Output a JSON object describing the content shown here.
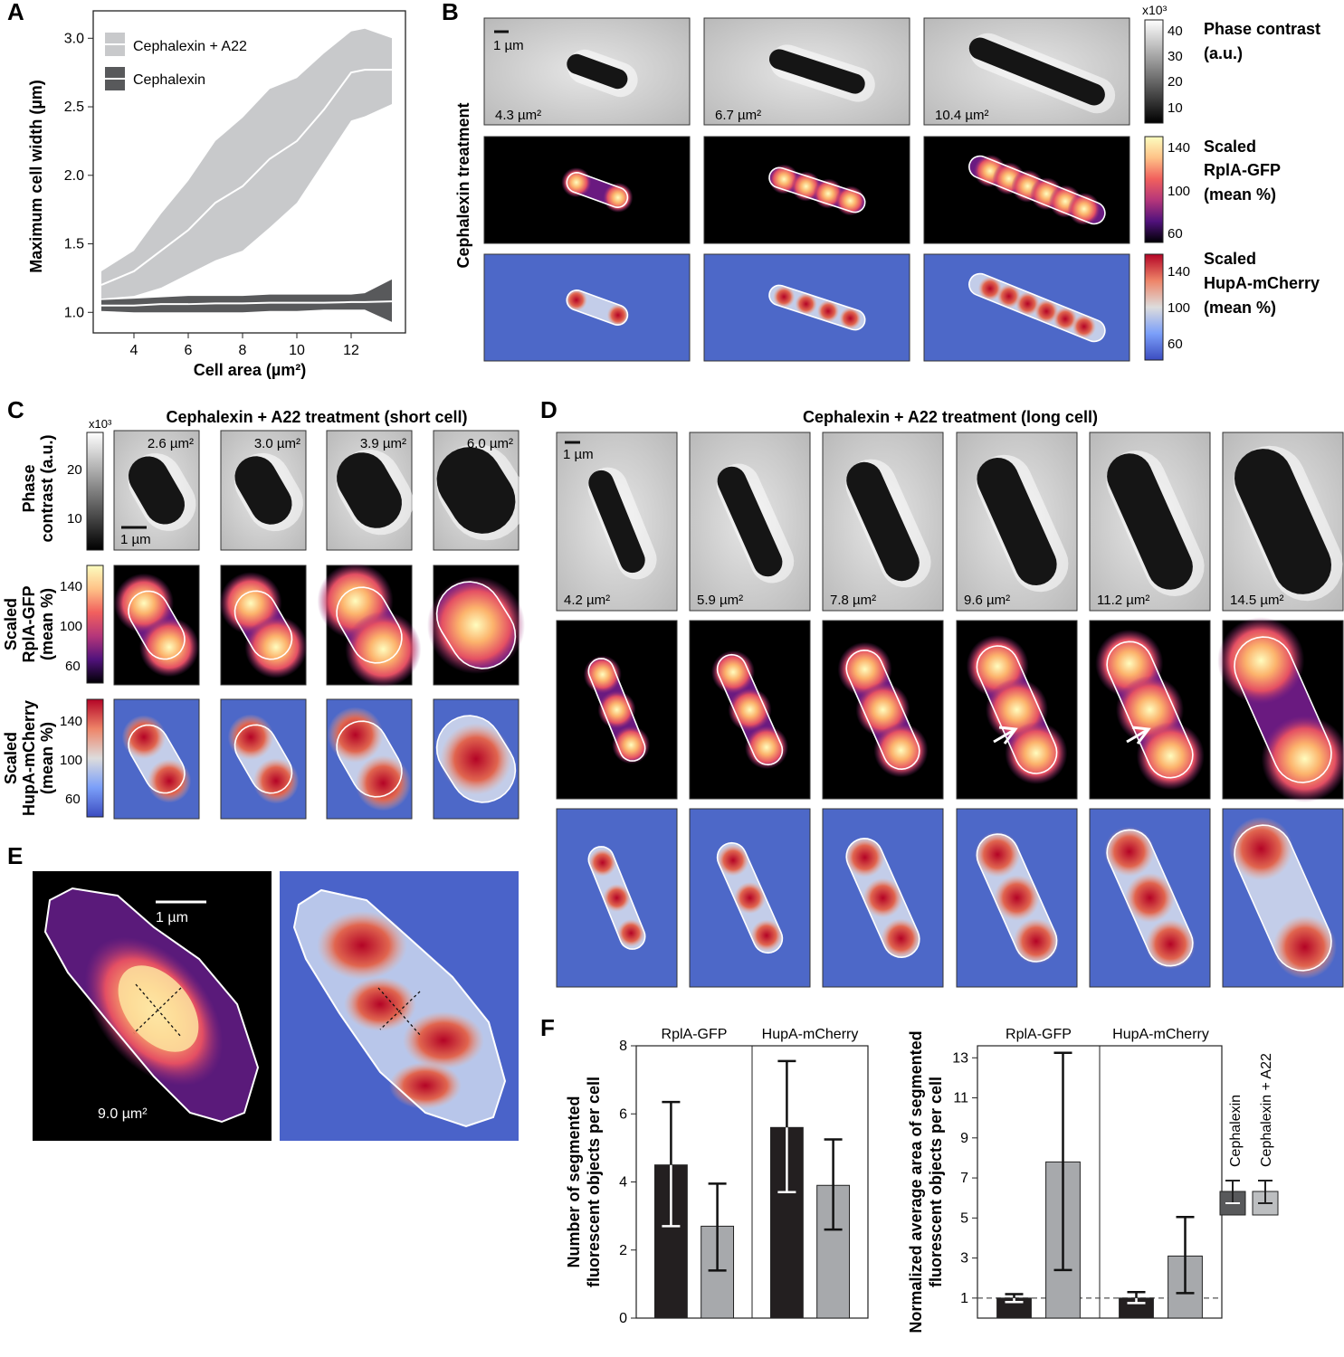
{
  "panels": {
    "A": {
      "label": "A",
      "legend": [
        "Cephalexin + A22",
        "Cephalexin"
      ],
      "xlabel": "Cell area (µm²)",
      "ylabel": "Maximum cell width (µm)",
      "xticks": [
        "4",
        "6",
        "8",
        "10",
        "12"
      ],
      "yticks": [
        "1.0",
        "1.5",
        "2.0",
        "2.5",
        "3.0"
      ]
    },
    "B": {
      "label": "B",
      "side_label": "Cephalexin treatment",
      "scale_bar": "1 µm",
      "areas": [
        "4.3 µm²",
        "6.7 µm²",
        "10.4 µm²"
      ],
      "cbar_phase": {
        "exp": "x10³",
        "ticks": [
          "40",
          "30",
          "20",
          "10"
        ],
        "title": [
          "Phase contrast",
          "(a.u.)"
        ]
      },
      "cbar_gfp": {
        "ticks": [
          "140",
          "100",
          "60"
        ],
        "title": [
          "Scaled",
          "RplA-GFP",
          "(mean %)"
        ]
      },
      "cbar_mch": {
        "ticks": [
          "140",
          "100",
          "60"
        ],
        "title": [
          "Scaled",
          "HupA-mCherry",
          "(mean %)"
        ]
      }
    },
    "C": {
      "label": "C",
      "title": "Cephalexin + A22 treatment (short cell)",
      "areas": [
        "2.6 µm²",
        "3.0 µm²",
        "3.9 µm²",
        "6.0 µm²"
      ],
      "scale_bar": "1 µm",
      "row_labels": [
        [
          "Phase",
          "contrast (a.u.)"
        ],
        [
          "Scaled",
          "RplA-GFP",
          "(mean %)"
        ],
        [
          "Scaled",
          "HupA-mCherry",
          "(mean %)"
        ]
      ],
      "cbar_phase": {
        "exp": "x10³",
        "ticks": [
          "20",
          "10"
        ]
      },
      "cbar_gfp": {
        "ticks": [
          "140",
          "100",
          "60"
        ]
      },
      "cbar_mch": {
        "ticks": [
          "140",
          "100",
          "60"
        ]
      }
    },
    "D": {
      "label": "D",
      "title": "Cephalexin + A22 treatment (long cell)",
      "scale_bar": "1 µm",
      "areas": [
        "4.2 µm²",
        "5.9 µm²",
        "7.8 µm²",
        "9.6 µm²",
        "11.2 µm²",
        "14.5 µm²"
      ]
    },
    "E": {
      "label": "E",
      "scale_bar": "1 µm",
      "area": "9.0 µm²"
    },
    "F": {
      "label": "F",
      "legend": [
        "Cephalexin",
        "Cephalexin + A22"
      ],
      "colors": {
        "cephalexin": "#231f20",
        "a22": "#a7a9ac"
      }
    }
  },
  "chart_data": [
    {
      "type": "line",
      "panel": "A",
      "xlabel": "Cell area (µm²)",
      "ylabel": "Maximum cell width (µm)",
      "xlim": [
        2.5,
        14
      ],
      "ylim": [
        0.85,
        3.2
      ],
      "series": [
        {
          "name": "Cephalexin + A22",
          "x": [
            2.8,
            4,
            5,
            6,
            7,
            8,
            9,
            10,
            11,
            12,
            12.5,
            13.5
          ],
          "mean": [
            1.2,
            1.3,
            1.45,
            1.6,
            1.8,
            1.92,
            2.12,
            2.25,
            2.48,
            2.75,
            2.77,
            2.77
          ],
          "upper": [
            1.3,
            1.45,
            1.72,
            1.96,
            2.25,
            2.42,
            2.63,
            2.71,
            2.89,
            3.05,
            3.07,
            3.0
          ],
          "lower": [
            1.1,
            1.12,
            1.18,
            1.28,
            1.38,
            1.45,
            1.62,
            1.8,
            2.1,
            2.4,
            2.43,
            2.52
          ],
          "color": "#c8c9cb"
        },
        {
          "name": "Cephalexin",
          "x": [
            2.8,
            4,
            5,
            6,
            7,
            8,
            9,
            10,
            11,
            12,
            12.5,
            13.5
          ],
          "mean": [
            1.05,
            1.05,
            1.06,
            1.06,
            1.065,
            1.065,
            1.07,
            1.07,
            1.07,
            1.075,
            1.075,
            1.08
          ],
          "upper": [
            1.09,
            1.1,
            1.11,
            1.12,
            1.12,
            1.12,
            1.13,
            1.13,
            1.13,
            1.13,
            1.14,
            1.24
          ],
          "lower": [
            1.01,
            1.0,
            1.0,
            1.0,
            1.0,
            1.0,
            1.01,
            1.01,
            1.02,
            1.02,
            1.02,
            0.93
          ],
          "color": "#58595b"
        }
      ]
    },
    {
      "type": "bar",
      "panel": "F-left",
      "ylabel": "Number of segmented fluorescent objects per cell",
      "ylim": [
        0,
        8
      ],
      "yticks": [
        "0",
        "2",
        "4",
        "6",
        "8"
      ],
      "groups": [
        "RplA-GFP",
        "HupA-mCherry"
      ],
      "series": [
        {
          "name": "Cephalexin",
          "values": [
            4.5,
            5.6
          ],
          "err_low": [
            2.7,
            3.7
          ],
          "err_high": [
            6.35,
            7.55
          ]
        },
        {
          "name": "Cephalexin + A22",
          "values": [
            2.7,
            3.9
          ],
          "err_low": [
            1.4,
            2.6
          ],
          "err_high": [
            3.95,
            5.25
          ]
        }
      ]
    },
    {
      "type": "bar",
      "panel": "F-right",
      "ylabel": "Normalized average area of segmented fluorescent objects per cell",
      "ylim": [
        0,
        13.6
      ],
      "yticks": [
        "1",
        "3",
        "5",
        "7",
        "9",
        "11",
        "13"
      ],
      "reference_line": 1,
      "groups": [
        "RplA-GFP",
        "HupA-mCherry"
      ],
      "series": [
        {
          "name": "Cephalexin",
          "values": [
            1.0,
            1.0
          ],
          "err_low": [
            0.8,
            0.75
          ],
          "err_high": [
            1.2,
            1.3
          ]
        },
        {
          "name": "Cephalexin + A22",
          "values": [
            7.8,
            3.1
          ],
          "err_low": [
            2.4,
            1.25
          ],
          "err_high": [
            13.25,
            5.05
          ]
        }
      ]
    }
  ]
}
